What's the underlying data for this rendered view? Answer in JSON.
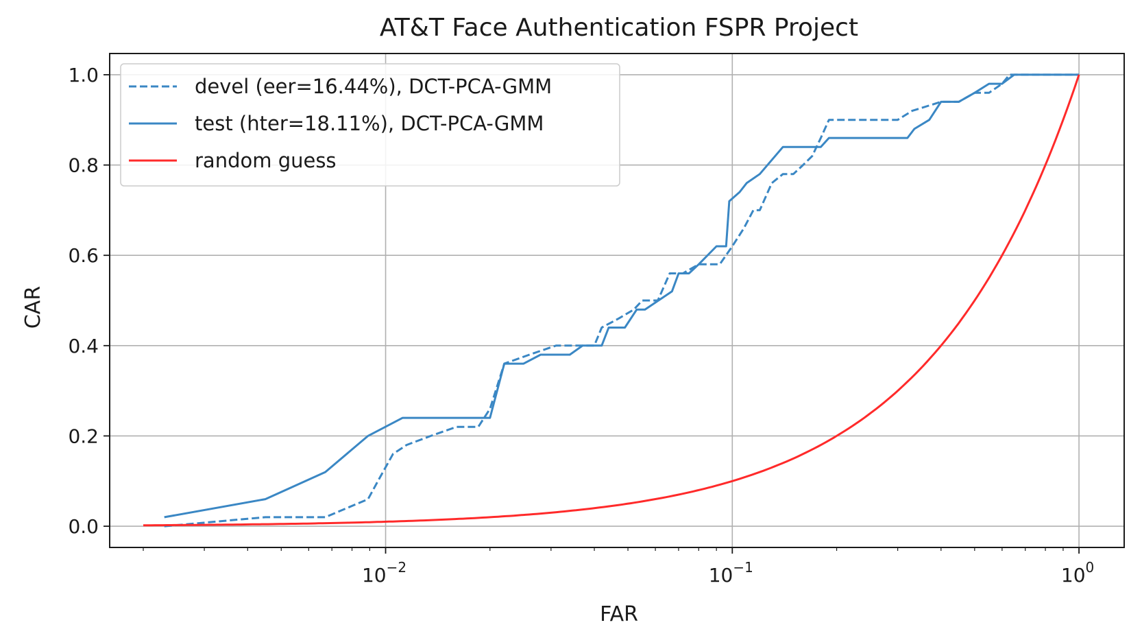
{
  "chart_data": {
    "type": "line",
    "title": "AT&T Face Authentication FSPR Project",
    "xlabel": "FAR",
    "ylabel": "CAR",
    "xscale": "log",
    "xlim": [
      0.0016,
      1.35
    ],
    "ylim": [
      -0.047,
      1.047
    ],
    "grid": true,
    "legend_position": "top-left",
    "x_ticks": [
      {
        "value": 0.01,
        "base": "10",
        "exp": "−2"
      },
      {
        "value": 0.1,
        "base": "10",
        "exp": "−1"
      },
      {
        "value": 1,
        "base": "10",
        "exp": "0"
      }
    ],
    "y_ticks": [
      {
        "value": 0.0,
        "label": "0.0"
      },
      {
        "value": 0.2,
        "label": "0.2"
      },
      {
        "value": 0.4,
        "label": "0.4"
      },
      {
        "value": 0.6,
        "label": "0.6"
      },
      {
        "value": 0.8,
        "label": "0.8"
      },
      {
        "value": 1.0,
        "label": "1.0"
      }
    ],
    "series": [
      {
        "name": "devel (eer=16.44%), DCT-PCA-GMM",
        "color": "#3a87c4",
        "style": "dashed",
        "x": [
          0.0023,
          0.0045,
          0.0067,
          0.0089,
          0.0095,
          0.0105,
          0.0115,
          0.0135,
          0.016,
          0.0185,
          0.02,
          0.022,
          0.026,
          0.031,
          0.04,
          0.042,
          0.047,
          0.052,
          0.055,
          0.061,
          0.066,
          0.072,
          0.08,
          0.092,
          0.1,
          0.108,
          0.115,
          0.12,
          0.13,
          0.14,
          0.15,
          0.16,
          0.17,
          0.18,
          0.19,
          0.3,
          0.33,
          0.4,
          0.45,
          0.5,
          0.55,
          0.6,
          0.63,
          0.7,
          0.8,
          1.0
        ],
        "y": [
          0.0,
          0.02,
          0.02,
          0.06,
          0.1,
          0.16,
          0.18,
          0.2,
          0.22,
          0.22,
          0.26,
          0.36,
          0.38,
          0.4,
          0.4,
          0.44,
          0.46,
          0.48,
          0.5,
          0.5,
          0.56,
          0.56,
          0.58,
          0.58,
          0.62,
          0.66,
          0.7,
          0.7,
          0.76,
          0.78,
          0.78,
          0.8,
          0.82,
          0.86,
          0.9,
          0.9,
          0.92,
          0.94,
          0.94,
          0.96,
          0.96,
          0.98,
          1.0,
          1.0,
          1.0,
          1.0
        ]
      },
      {
        "name": "test (hter=18.11%), DCT-PCA-GMM",
        "color": "#3a87c4",
        "style": "solid",
        "x": [
          0.0023,
          0.0045,
          0.0067,
          0.0089,
          0.0112,
          0.0134,
          0.0156,
          0.02,
          0.022,
          0.025,
          0.028,
          0.03,
          0.034,
          0.037,
          0.042,
          0.044,
          0.049,
          0.053,
          0.056,
          0.067,
          0.07,
          0.075,
          0.08,
          0.09,
          0.096,
          0.098,
          0.105,
          0.11,
          0.12,
          0.14,
          0.145,
          0.18,
          0.19,
          0.22,
          0.32,
          0.335,
          0.37,
          0.4,
          0.45,
          0.5,
          0.55,
          0.6,
          0.65,
          0.7,
          1.0
        ],
        "y": [
          0.02,
          0.06,
          0.12,
          0.2,
          0.24,
          0.24,
          0.24,
          0.24,
          0.36,
          0.36,
          0.38,
          0.38,
          0.38,
          0.4,
          0.4,
          0.44,
          0.44,
          0.48,
          0.48,
          0.52,
          0.56,
          0.56,
          0.58,
          0.62,
          0.62,
          0.72,
          0.74,
          0.76,
          0.78,
          0.84,
          0.84,
          0.84,
          0.86,
          0.86,
          0.86,
          0.88,
          0.9,
          0.94,
          0.94,
          0.96,
          0.98,
          0.98,
          1.0,
          1.0,
          1.0
        ]
      },
      {
        "name": "random guess",
        "color": "#ff2a2a",
        "style": "solid",
        "function": "y = x",
        "x_range": [
          0.002,
          1.0
        ]
      }
    ]
  }
}
